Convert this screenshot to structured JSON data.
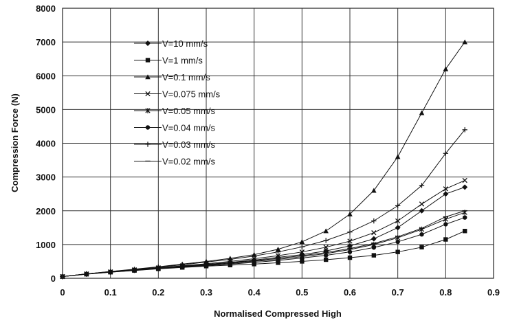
{
  "chart_data": {
    "type": "line",
    "title": "",
    "xlabel": "Normalised Compressed High",
    "ylabel": "Compression Force (N)",
    "xlim": [
      0,
      0.9
    ],
    "ylim": [
      0,
      8000
    ],
    "xticks": [
      "0",
      "0.1",
      "0.2",
      "0.3",
      "0.4",
      "0.5",
      "0.6",
      "0.7",
      "0.8",
      "0.9"
    ],
    "yticks": [
      "0",
      "1000",
      "2000",
      "3000",
      "4000",
      "5000",
      "6000",
      "7000",
      "8000"
    ],
    "grid": true,
    "legend_position": "top-left",
    "series": [
      {
        "name": "V=10 mm/s",
        "marker": "diamond",
        "x": [
          0,
          0.05,
          0.1,
          0.15,
          0.2,
          0.25,
          0.3,
          0.35,
          0.4,
          0.45,
          0.5,
          0.55,
          0.6,
          0.65,
          0.7,
          0.75,
          0.8,
          0.84
        ],
        "values": [
          50,
          130,
          190,
          250,
          300,
          360,
          410,
          470,
          540,
          620,
          700,
          810,
          960,
          1170,
          1500,
          2000,
          2500,
          2700
        ]
      },
      {
        "name": "V=1 mm/s",
        "marker": "square",
        "x": [
          0,
          0.05,
          0.1,
          0.15,
          0.2,
          0.25,
          0.3,
          0.35,
          0.4,
          0.45,
          0.5,
          0.55,
          0.6,
          0.65,
          0.7,
          0.75,
          0.8,
          0.84
        ],
        "values": [
          50,
          120,
          180,
          230,
          280,
          320,
          360,
          390,
          420,
          460,
          500,
          550,
          610,
          680,
          780,
          920,
          1150,
          1400
        ]
      },
      {
        "name": "V=0.1 mm/s",
        "marker": "triangle",
        "x": [
          0,
          0.05,
          0.1,
          0.15,
          0.2,
          0.25,
          0.3,
          0.35,
          0.4,
          0.45,
          0.5,
          0.55,
          0.6,
          0.65,
          0.7,
          0.75,
          0.8,
          0.84
        ],
        "values": [
          50,
          130,
          200,
          270,
          340,
          420,
          500,
          590,
          700,
          860,
          1080,
          1400,
          1900,
          2600,
          3600,
          4900,
          6200,
          7000
        ]
      },
      {
        "name": "V=0.075 mm/s",
        "marker": "x",
        "x": [
          0,
          0.05,
          0.1,
          0.15,
          0.2,
          0.25,
          0.3,
          0.35,
          0.4,
          0.45,
          0.5,
          0.55,
          0.6,
          0.65,
          0.7,
          0.75,
          0.8,
          0.84
        ],
        "values": [
          50,
          130,
          190,
          250,
          310,
          370,
          430,
          500,
          580,
          670,
          780,
          920,
          1100,
          1350,
          1700,
          2200,
          2650,
          2900
        ]
      },
      {
        "name": "V=0.05 mm/s",
        "marker": "star",
        "x": [
          0,
          0.05,
          0.1,
          0.15,
          0.2,
          0.25,
          0.3,
          0.35,
          0.4,
          0.45,
          0.5,
          0.55,
          0.6,
          0.65,
          0.7,
          0.75,
          0.8,
          0.84
        ],
        "values": [
          50,
          125,
          185,
          240,
          290,
          340,
          390,
          440,
          500,
          560,
          640,
          730,
          850,
          1000,
          1200,
          1450,
          1750,
          1950
        ]
      },
      {
        "name": "V=0.04 mm/s",
        "marker": "circle",
        "x": [
          0,
          0.05,
          0.1,
          0.15,
          0.2,
          0.25,
          0.3,
          0.35,
          0.4,
          0.45,
          0.5,
          0.55,
          0.6,
          0.65,
          0.7,
          0.75,
          0.8,
          0.84
        ],
        "values": [
          50,
          125,
          180,
          235,
          285,
          330,
          375,
          420,
          470,
          530,
          600,
          680,
          780,
          910,
          1080,
          1300,
          1600,
          1800
        ]
      },
      {
        "name": "V=0.03 mm/s",
        "marker": "plus",
        "x": [
          0,
          0.05,
          0.1,
          0.15,
          0.2,
          0.25,
          0.3,
          0.35,
          0.4,
          0.45,
          0.5,
          0.55,
          0.6,
          0.65,
          0.7,
          0.75,
          0.8,
          0.84
        ],
        "values": [
          50,
          130,
          200,
          260,
          330,
          400,
          480,
          560,
          660,
          780,
          930,
          1120,
          1370,
          1700,
          2150,
          2750,
          3700,
          4400
        ]
      },
      {
        "name": "V=0.02 mm/s",
        "marker": "dash",
        "x": [
          0,
          0.05,
          0.1,
          0.15,
          0.2,
          0.25,
          0.3,
          0.35,
          0.4,
          0.45,
          0.5,
          0.55,
          0.6,
          0.65,
          0.7,
          0.75,
          0.8,
          0.84
        ],
        "values": [
          50,
          125,
          185,
          240,
          295,
          350,
          405,
          460,
          520,
          590,
          670,
          760,
          880,
          1030,
          1230,
          1480,
          1820,
          2000
        ]
      }
    ]
  }
}
